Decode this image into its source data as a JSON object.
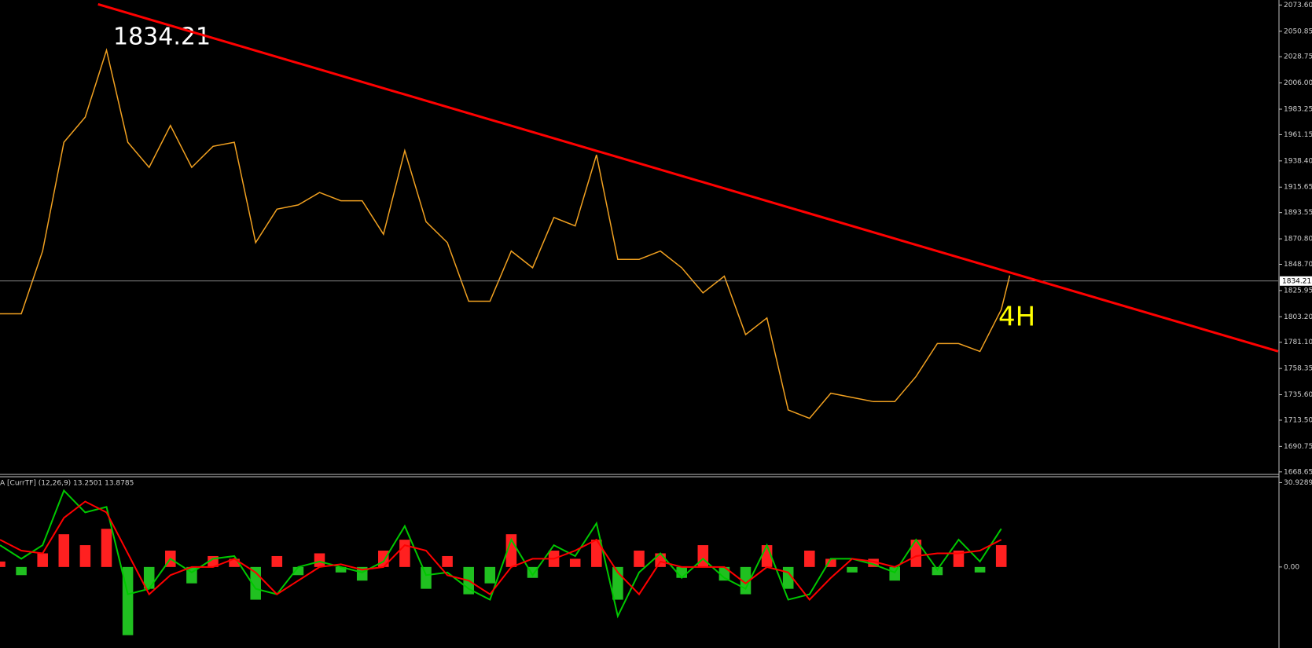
{
  "chart_data": [
    {
      "type": "line",
      "x": [
        0,
        5,
        10,
        15,
        20,
        25,
        30,
        35,
        40,
        45,
        50,
        55,
        60,
        65,
        70,
        75,
        80,
        85,
        90,
        95,
        100,
        105,
        110,
        115,
        120,
        125,
        130,
        135,
        140,
        145,
        150,
        155,
        160,
        165,
        170,
        175,
        180,
        185,
        190,
        195,
        200,
        205,
        210,
        215,
        220,
        225,
        230,
        235,
        237
      ],
      "series": [
        {
          "color": "#f0a020",
          "values": [
            1805.8,
            1805.8,
            1860.2,
            1954.6,
            1976.4,
            2034.4,
            1954.6,
            1932.8,
            1969.1,
            1932.8,
            1951,
            1954.6,
            1867.5,
            1896.5,
            1900.2,
            1911,
            1903.8,
            1903.8,
            1874.8,
            1947.3,
            1885.6,
            1867.5,
            1816.7,
            1816.7,
            1860.2,
            1845.7,
            1889.3,
            1882,
            1943.7,
            1853,
            1853,
            1860.2,
            1845.7,
            1823.9,
            1838.4,
            1787.7,
            1802.2,
            1722.4,
            1715.1,
            1736.9,
            1733.2,
            1729.6,
            1729.6,
            1751.4,
            1780,
            1780,
            1773.1,
            1809.4,
            1839
          ]
        }
      ],
      "trendline": {
        "color": "#ff0000",
        "x": [
          23,
          300
        ],
        "values": [
          2074.3,
          1773.2
        ]
      },
      "current_price": {
        "value": 1834.21,
        "label": "1834.21"
      },
      "price_annotation": "1834.21",
      "timeframe_annotation": "4H",
      "xlim": [
        0,
        300
      ],
      "ylim": [
        1666.47,
        2077.95
      ],
      "yticks": [
        {
          "value": 2073.6,
          "label": "2073.60"
        },
        2050.85,
        2028.75,
        {
          "value": 2006,
          "label": "2006.00"
        },
        1983.25,
        1961.15,
        {
          "value": 1938.4,
          "label": "1938.40"
        },
        1915.65,
        1893.55,
        {
          "value": 1870.8,
          "label": "1870.80"
        },
        {
          "value": 1848.7,
          "label": "1848.70"
        },
        1825.95,
        {
          "value": 1803.2,
          "label": "1803.20"
        },
        {
          "value": 1781.1,
          "label": "1781.10"
        },
        1758.35,
        {
          "value": 1735.6,
          "label": "1735.60"
        },
        {
          "value": 1713.5,
          "label": "1713.50"
        },
        1690.75,
        1668.65
      ]
    },
    {
      "type": "bar",
      "indicator_label": "A [CurrTF] (12,26,9) 13.2501 13.8785",
      "x": [
        0,
        5,
        10,
        15,
        20,
        25,
        30,
        35,
        40,
        45,
        50,
        55,
        60,
        65,
        70,
        75,
        80,
        85,
        90,
        95,
        100,
        105,
        110,
        115,
        120,
        125,
        130,
        135,
        140,
        145,
        150,
        155,
        160,
        165,
        170,
        175,
        180,
        185,
        190,
        195,
        200,
        205,
        210,
        215,
        220,
        225,
        230,
        235
      ],
      "histogram": {
        "pos_color": "#ff2020",
        "neg_color": "#20c020",
        "values": [
          2,
          -3,
          5,
          12,
          8,
          14,
          -25,
          -8,
          6,
          -6,
          4,
          3,
          -12,
          4,
          -3,
          5,
          -2,
          -5,
          6,
          10,
          -8,
          4,
          -10,
          -6,
          12,
          -4,
          6,
          3,
          10,
          -12,
          6,
          5,
          -4,
          8,
          -5,
          -10,
          8,
          -8,
          6,
          3,
          -2,
          3,
          -5,
          10,
          -3,
          6,
          -2,
          8
        ]
      },
      "series": [
        {
          "color": "#00c800",
          "values": [
            8,
            3,
            8,
            28,
            20,
            22,
            -10,
            -8,
            3,
            -2,
            3,
            4,
            -8,
            -10,
            0,
            2,
            0,
            -2,
            2,
            15,
            -3,
            -2,
            -8,
            -12,
            10,
            -3,
            8,
            4,
            16,
            -18,
            -2,
            5,
            -4,
            3,
            -4,
            -8,
            8,
            -12,
            -10,
            3,
            3,
            1,
            -2,
            10,
            -1,
            10,
            2,
            14
          ]
        },
        {
          "color": "#ff0000",
          "values": [
            10,
            6,
            5,
            18,
            24,
            20,
            5,
            -10,
            -3,
            0,
            0,
            3,
            -2,
            -10,
            -5,
            0,
            1,
            -1,
            0,
            8,
            6,
            -3,
            -5,
            -10,
            0,
            3,
            3,
            6,
            10,
            -2,
            -10,
            2,
            0,
            0,
            0,
            -6,
            0,
            -2,
            -12,
            -4,
            3,
            2,
            0,
            4,
            5,
            5,
            6,
            10
          ]
        }
      ],
      "xlim": [
        0,
        300
      ],
      "ylim": [
        -29.7,
        33.07
      ],
      "yticks": [
        {
          "value": 30.9289,
          "label": "30.9289"
        },
        {
          "value": 0,
          "label": "0.00"
        }
      ]
    }
  ]
}
